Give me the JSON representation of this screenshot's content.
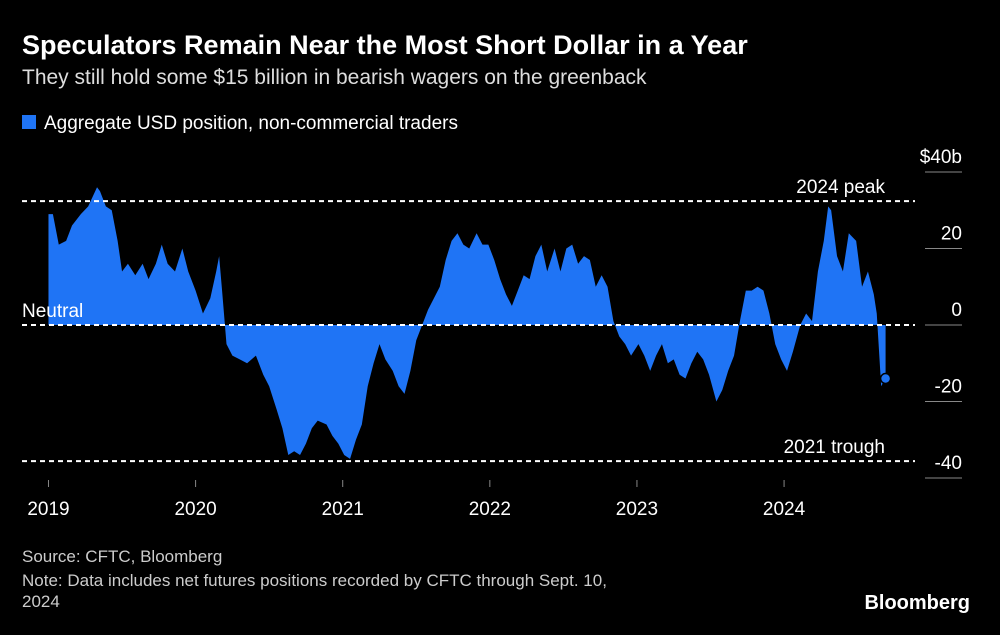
{
  "chart_data": {
    "type": "area",
    "title": "Speculators Remain Near the Most Short Dollar in a Year",
    "subtitle": "They still hold some $15 billion in bearish wagers on the greenback",
    "source": "Source: CFTC, Bloomberg",
    "note": "Note: Data includes net futures positions recorded by CFTC through Sept. 10, 2024",
    "brand": "Bloomberg",
    "xlim": [
      2018.82,
      2024.89
    ],
    "xticks": [
      2019,
      2020,
      2021,
      2022,
      2023,
      2024
    ],
    "ylim": [
      -40,
      40
    ],
    "yticks": [
      {
        "value": 40,
        "label": "$40b"
      },
      20,
      0,
      -20,
      -40
    ],
    "reference_lines": [
      {
        "label": "2024 peak",
        "value": 32.4
      },
      {
        "label": "Neutral",
        "value": 0
      },
      {
        "label": "2021 trough",
        "value": -35.6
      }
    ],
    "x": [
      2019.0,
      2019.03,
      2019.07,
      2019.12,
      2019.16,
      2019.22,
      2019.27,
      2019.33,
      2019.35,
      2019.39,
      2019.43,
      2019.47,
      2019.5,
      2019.54,
      2019.59,
      2019.64,
      2019.68,
      2019.73,
      2019.77,
      2019.81,
      2019.86,
      2019.91,
      2019.95,
      2020.0,
      2020.05,
      2020.1,
      2020.14,
      2020.16,
      2020.18,
      2020.21,
      2020.25,
      2020.3,
      2020.35,
      2020.41,
      2020.46,
      2020.5,
      2020.55,
      2020.59,
      2020.63,
      2020.67,
      2020.71,
      2020.75,
      2020.79,
      2020.83,
      2020.89,
      2020.93,
      2020.97,
      2021.01,
      2021.05,
      2021.09,
      2021.13,
      2021.17,
      2021.21,
      2021.25,
      2021.29,
      2021.34,
      2021.38,
      2021.42,
      2021.46,
      2021.5,
      2021.54,
      2021.58,
      2021.62,
      2021.66,
      2021.7,
      2021.74,
      2021.78,
      2021.82,
      2021.86,
      2021.91,
      2021.95,
      2021.99,
      2022.03,
      2022.07,
      2022.11,
      2022.15,
      2022.19,
      2022.23,
      2022.27,
      2022.31,
      2022.35,
      2022.39,
      2022.44,
      2022.48,
      2022.52,
      2022.56,
      2022.6,
      2022.64,
      2022.68,
      2022.72,
      2022.76,
      2022.8,
      2022.84,
      2022.88,
      2022.92,
      2022.96,
      2023.01,
      2023.05,
      2023.09,
      2023.13,
      2023.17,
      2023.21,
      2023.25,
      2023.29,
      2023.33,
      2023.37,
      2023.41,
      2023.45,
      2023.49,
      2023.54,
      2023.58,
      2023.62,
      2023.66,
      2023.7,
      2023.74,
      2023.78,
      2023.82,
      2023.86,
      2023.9,
      2023.94,
      2023.98,
      2024.02,
      2024.06,
      2024.11,
      2024.15,
      2024.19,
      2024.23,
      2024.27,
      2024.3,
      2024.32,
      2024.36,
      2024.4,
      2024.44,
      2024.49,
      2024.53,
      2024.57,
      2024.61,
      2024.63,
      2024.66,
      2024.69
    ],
    "series": [
      {
        "name": "Aggregate USD position, non-commercial traders",
        "color": "#1f74f5",
        "values": [
          29,
          29,
          21,
          22,
          26,
          29,
          31,
          36,
          35,
          31,
          30,
          22,
          14,
          16,
          13,
          16,
          12,
          16,
          21,
          16,
          14,
          20,
          14,
          9,
          3,
          7,
          14,
          18,
          9,
          -5,
          -8,
          -9,
          -10,
          -8,
          -13,
          -16,
          -22,
          -27,
          -34,
          -33,
          -34,
          -31,
          -27,
          -25,
          -26,
          -29,
          -31,
          -34,
          -35,
          -30,
          -26,
          -16,
          -10,
          -5,
          -9,
          -12,
          -16,
          -18,
          -12,
          -4,
          0,
          4,
          7,
          10,
          17,
          22,
          24,
          21,
          20,
          24,
          21,
          21,
          17,
          12,
          8,
          5,
          9,
          13,
          12,
          18,
          21,
          14,
          20,
          14,
          20,
          21,
          16,
          18,
          17,
          10,
          13,
          10,
          1,
          -3,
          -5,
          -8,
          -5,
          -8,
          -12,
          -8,
          -5,
          -10,
          -9,
          -13,
          -14,
          -10,
          -7,
          -9,
          -13,
          -20,
          -17,
          -12,
          -8,
          1,
          9,
          9,
          10,
          9,
          3,
          -5,
          -9,
          -12,
          -7,
          0,
          3,
          1,
          14,
          22,
          31,
          30,
          18,
          14,
          24,
          22,
          10,
          14,
          8,
          3,
          -16,
          -14
        ]
      }
    ]
  }
}
